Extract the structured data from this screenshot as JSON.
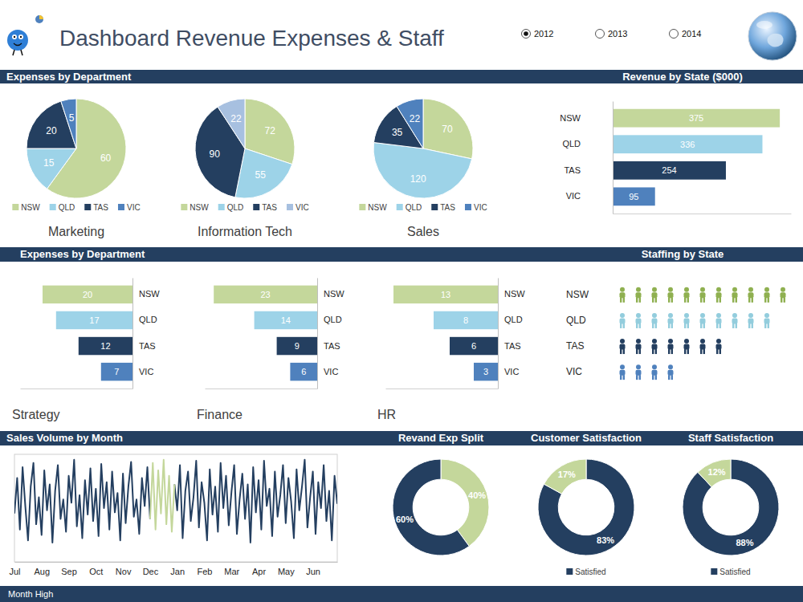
{
  "header": {
    "title": "Dashboard Revenue Expenses & Staff",
    "years": [
      {
        "label": "2012",
        "selected": true
      },
      {
        "label": "2013",
        "selected": false
      },
      {
        "label": "2014",
        "selected": false
      }
    ]
  },
  "section_titles": [
    "Expenses by Department",
    "Expenses by Department"
  ],
  "chart_data": [
    {
      "type": "pie",
      "title": "Marketing",
      "categories": [
        "NSW",
        "QLD",
        "TAS",
        "VIC"
      ],
      "values": [
        60,
        15,
        20,
        5
      ],
      "colors": [
        "#c4d79b",
        "#9dd3e8",
        "#243f60",
        "#4f81bd"
      ],
      "data_labels": true,
      "legend": "bottom"
    },
    {
      "type": "pie",
      "title": "Information Tech",
      "categories": [
        "NSW",
        "QLD",
        "TAS",
        "VIC"
      ],
      "values": [
        72,
        55,
        90,
        22
      ],
      "colors": [
        "#c4d79b",
        "#9dd3e8",
        "#243f60",
        "#a7c0e0"
      ],
      "data_labels": true,
      "legend": "bottom"
    },
    {
      "type": "pie",
      "title": "Sales",
      "categories": [
        "NSW",
        "QLD",
        "TAS",
        "VIC"
      ],
      "values": [
        70,
        120,
        35,
        22
      ],
      "colors": [
        "#c4d79b",
        "#9dd3e8",
        "#243f60",
        "#4f81bd"
      ],
      "data_labels": true,
      "legend": "bottom"
    },
    {
      "type": "bar",
      "orientation": "horizontal",
      "title": "Revenue by State ($000)",
      "categories": [
        "NSW",
        "QLD",
        "TAS",
        "VIC"
      ],
      "values": [
        375,
        336,
        254,
        95
      ],
      "colors": [
        "#c4d79b",
        "#9dd3e8",
        "#243f60",
        "#4f81bd"
      ],
      "xlim": [
        0,
        400
      ],
      "data_labels": true,
      "tick_labels": "y"
    },
    {
      "type": "bar",
      "orientation": "horizontal",
      "title": "Strategy",
      "categories": [
        "NSW",
        "QLD",
        "TAS",
        "VIC"
      ],
      "values": [
        20,
        17,
        12,
        7
      ],
      "colors": [
        "#c4d79b",
        "#9dd3e8",
        "#243f60",
        "#4f81bd"
      ],
      "xlim": [
        25,
        0
      ],
      "data_labels": true,
      "tick_labels": "y"
    },
    {
      "type": "bar",
      "orientation": "horizontal",
      "title": "Finance",
      "categories": [
        "NSW",
        "QLD",
        "TAS",
        "VIC"
      ],
      "values": [
        23,
        14,
        9,
        6
      ],
      "colors": [
        "#c4d79b",
        "#9dd3e8",
        "#243f60",
        "#4f81bd"
      ],
      "xlim": [
        25,
        0
      ],
      "data_labels": true,
      "tick_labels": "y"
    },
    {
      "type": "bar",
      "orientation": "horizontal",
      "title": "HR",
      "categories": [
        "NSW",
        "QLD",
        "TAS",
        "VIC"
      ],
      "values": [
        13,
        8,
        6,
        3
      ],
      "colors": [
        "#c4d79b",
        "#9dd3e8",
        "#243f60",
        "#4f81bd"
      ],
      "xlim": [
        14,
        0
      ],
      "data_labels": true,
      "tick_labels": "y"
    },
    {
      "type": "pictogram",
      "orientation": "horizontal",
      "title": "Staffing by State",
      "categories": [
        "NSW",
        "QLD",
        "TAS",
        "VIC"
      ],
      "values": [
        11,
        10,
        7,
        4
      ],
      "colors": [
        "#8fb050",
        "#93cddd",
        "#243f60",
        "#4f81bd"
      ],
      "tick_labels": "y"
    },
    {
      "type": "line",
      "title": "Sales Volume by Month",
      "categories": [
        "Jul",
        null,
        null,
        null,
        null,
        null,
        null,
        null,
        null,
        null,
        "Aug",
        null,
        null,
        null,
        null,
        null,
        null,
        null,
        null,
        null,
        "Sep",
        null,
        null,
        null,
        null,
        null,
        null,
        null,
        null,
        null,
        "Oct",
        null,
        null,
        null,
        null,
        null,
        null,
        null,
        null,
        null,
        "Nov",
        null,
        null,
        null,
        null,
        null,
        null,
        null,
        null,
        null,
        "Dec",
        null,
        null,
        null,
        null,
        null,
        null,
        null,
        null,
        null,
        "Jan",
        null,
        null,
        null,
        null,
        null,
        null,
        null,
        null,
        null,
        "Feb",
        null,
        null,
        null,
        null,
        null,
        null,
        null,
        null,
        null,
        "Mar",
        null,
        null,
        null,
        null,
        null,
        null,
        null,
        null,
        null,
        "Apr",
        null,
        null,
        null,
        null,
        null,
        null,
        null,
        null,
        null,
        "May",
        null,
        null,
        null,
        null,
        null,
        null,
        null,
        null,
        null,
        "Jun",
        null,
        null,
        null,
        null,
        null,
        null,
        null,
        null,
        null
      ],
      "series": [
        {
          "color": "#243f60",
          "values": [
            45,
            78,
            30,
            88,
            52,
            20,
            70,
            92,
            35,
            60,
            25,
            85,
            48,
            72,
            18,
            66,
            90,
            40,
            58,
            28,
            80,
            55,
            95,
            33,
            62,
            22,
            76,
            44,
            87,
            38,
            68,
            24,
            91,
            50,
            74,
            30,
            84,
            46,
            64,
            20,
            82,
            36,
            70,
            93,
            42,
            58,
            26,
            78,
            52,
            88,
            40,
            null,
            null,
            null,
            null,
            null,
            null,
            null,
            null,
            72,
            48,
            90,
            22,
            66,
            84,
            38,
            60,
            94,
            32,
            74,
            55,
            20,
            86,
            44,
            70,
            28,
            92,
            50,
            80,
            34,
            65,
            90,
            26,
            58,
            82,
            40,
            72,
            18,
            88,
            46,
            76,
            30,
            94,
            52,
            68,
            24,
            84,
            42,
            62,
            90,
            36,
            78,
            56,
            22,
            86,
            48,
            70,
            95,
            32,
            60,
            84,
            26,
            74,
            50,
            90,
            38,
            66,
            20,
            80,
            54
          ]
        },
        {
          "name": "Month High",
          "color": "#c4d79b",
          "values": [
            null,
            null,
            null,
            null,
            null,
            null,
            null,
            null,
            null,
            null,
            null,
            null,
            null,
            null,
            null,
            null,
            null,
            null,
            null,
            null,
            null,
            null,
            null,
            null,
            null,
            null,
            null,
            null,
            null,
            null,
            null,
            null,
            null,
            null,
            null,
            null,
            null,
            null,
            null,
            null,
            null,
            null,
            null,
            null,
            null,
            null,
            null,
            null,
            null,
            null,
            40,
            92,
            30,
            85,
            45,
            95,
            35,
            80,
            28,
            72,
            null,
            null,
            null,
            null,
            null,
            null,
            null,
            null,
            null,
            null,
            null,
            null,
            null,
            null,
            null,
            null,
            null,
            null,
            null,
            null,
            null,
            null,
            null,
            null,
            null,
            null,
            null,
            null,
            null,
            null,
            null,
            null,
            null,
            null,
            null,
            null,
            null,
            null,
            null,
            null,
            null,
            null,
            null,
            null,
            null,
            null,
            null,
            null,
            null,
            null,
            null,
            null,
            null,
            null,
            null,
            null,
            null,
            null,
            null,
            null
          ]
        }
      ],
      "ylim": [
        0,
        100
      ],
      "tick_labels": "x",
      "legend": "bottom"
    },
    {
      "type": "donut",
      "title": "Revand Exp Split",
      "values": [
        40,
        60
      ],
      "value_labels": [
        "40%",
        "60%"
      ],
      "colors": [
        "#c4d79b",
        "#243f60"
      ],
      "data_labels": true
    },
    {
      "type": "donut",
      "title": "Customer Satisfaction",
      "categories": [
        "Satisfied",
        null
      ],
      "values": [
        83,
        17
      ],
      "value_labels": [
        "83%",
        "17%"
      ],
      "colors": [
        "#243f60",
        "#c4d79b"
      ],
      "data_labels": true,
      "legend": "bottom"
    },
    {
      "type": "donut",
      "title": "Staff Satisfaction",
      "categories": [
        "Satisfied",
        null
      ],
      "values": [
        88,
        12
      ],
      "value_labels": [
        "88%",
        "12%"
      ],
      "colors": [
        "#243f60",
        "#c4d79b"
      ],
      "data_labels": true,
      "legend": "bottom"
    }
  ]
}
